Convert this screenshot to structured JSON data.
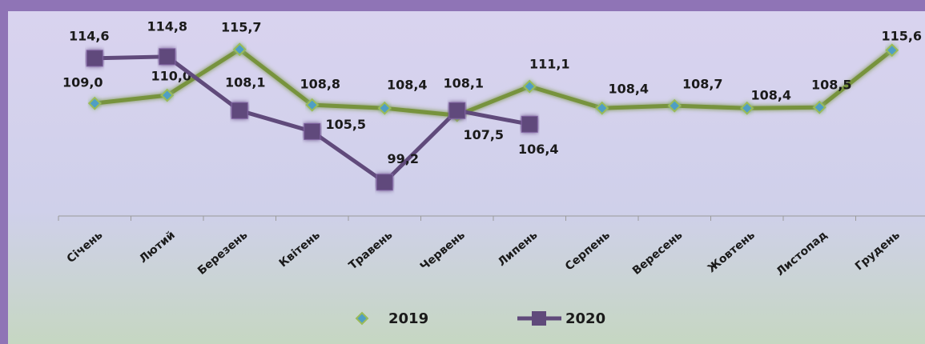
{
  "chart_data": {
    "type": "line",
    "categories": [
      "Січень",
      "Лютий",
      "Березень",
      "Квітень",
      "Травень",
      "Червень",
      "Липень",
      "Серпень",
      "Вересень",
      "Жовтень",
      "Листопад",
      "Грудень"
    ],
    "series": [
      {
        "name": "2019",
        "color": "#77933c",
        "marker": "diamond",
        "values": [
          109.0,
          110.0,
          115.7,
          108.8,
          108.4,
          107.5,
          111.1,
          108.4,
          108.7,
          108.4,
          108.5,
          115.6
        ],
        "value_labels": [
          "109,0",
          "110,0",
          "115,7",
          "108,8",
          "108,4",
          "107,5",
          "111,1",
          "108,4",
          "108,7",
          "108,4",
          "108,5",
          "115,6"
        ]
      },
      {
        "name": "2020",
        "color": "#604a7b",
        "marker": "square",
        "values": [
          114.6,
          114.8,
          108.1,
          105.5,
          99.2,
          108.1,
          106.4,
          null,
          null,
          null,
          null,
          null
        ],
        "value_labels": [
          "114,6",
          "114,8",
          "108,1",
          "105,5",
          "99,2",
          "108,1",
          "106,4",
          null,
          null,
          null,
          null,
          null
        ]
      }
    ],
    "ylim": [
      95,
      120
    ],
    "legend": "bottom"
  }
}
